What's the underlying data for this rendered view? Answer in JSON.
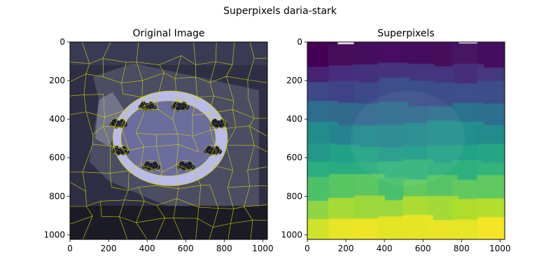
{
  "figure": {
    "suptitle": "Superpixels daria-stark"
  },
  "chart_data": [
    {
      "type": "heatmap",
      "title": "Original Image",
      "description_kind": "image with superpixel boundaries",
      "xlim": [
        0,
        1024
      ],
      "ylim": [
        1024,
        0
      ],
      "xticks": [
        0,
        200,
        400,
        600,
        800,
        1000
      ],
      "yticks": [
        0,
        200,
        400,
        600,
        800,
        1000
      ],
      "boundary_color": "#d4d400",
      "palette": {
        "background": "#2e2f45",
        "plate": "#b9bbea",
        "plate_center": "#6b6d9d",
        "mat": "#4f5166",
        "berry": "#1b1b26"
      }
    },
    {
      "type": "heatmap",
      "title": "Superpixels",
      "colormap": "viridis",
      "xlim": [
        0,
        1024
      ],
      "ylim": [
        1024,
        0
      ],
      "xticks": [
        0,
        200,
        400,
        600,
        800,
        1000
      ],
      "yticks": [
        0,
        200,
        400,
        600,
        800,
        1000
      ],
      "label_bands": [
        {
          "y_range": [
            0,
            120
          ],
          "value": 0.02
        },
        {
          "y_range": [
            120,
            200
          ],
          "value": 0.12
        },
        {
          "y_range": [
            200,
            320
          ],
          "value": 0.22
        },
        {
          "y_range": [
            320,
            420
          ],
          "value": 0.34
        },
        {
          "y_range": [
            420,
            540
          ],
          "value": 0.46
        },
        {
          "y_range": [
            540,
            620
          ],
          "value": 0.55
        },
        {
          "y_range": [
            620,
            700
          ],
          "value": 0.62
        },
        {
          "y_range": [
            700,
            810
          ],
          "value": 0.72
        },
        {
          "y_range": [
            810,
            910
          ],
          "value": 0.84
        },
        {
          "y_range": [
            910,
            1024
          ],
          "value": 0.95
        }
      ]
    }
  ]
}
